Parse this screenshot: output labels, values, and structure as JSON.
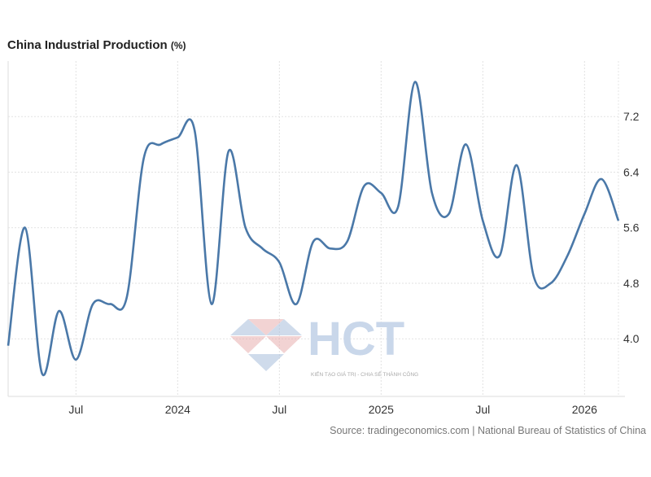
{
  "chart_data": {
    "type": "line",
    "title": "China Industrial Production",
    "unit": "(%)",
    "source": "Source: tradingeconomics.com | National Bureau of Statistics of China",
    "watermark": {
      "text": "HCT",
      "tagline": "KIẾN TẠO GIÁ TRỊ - CHIA SẺ THÀNH CÔNG"
    },
    "xlabel": "",
    "ylabel": "",
    "ylim": [
      3.17,
      8.0
    ],
    "y_ticks": [
      4.0,
      4.8,
      5.6,
      6.4,
      7.2
    ],
    "x_ticks": [
      {
        "label": "Jul",
        "month": 4
      },
      {
        "label": "2024",
        "month": 10
      },
      {
        "label": "Jul",
        "month": 16
      },
      {
        "label": "2025",
        "month": 22
      },
      {
        "label": "Jul",
        "month": 28
      },
      {
        "label": "2026",
        "month": 34
      }
    ],
    "grid": true,
    "line_color": "#4a78a8",
    "series": [
      {
        "name": "China Industrial Production",
        "x": [
          "2023-03",
          "2023-04",
          "2023-05",
          "2023-06",
          "2023-07",
          "2023-08",
          "2023-09",
          "2023-10",
          "2023-11",
          "2023-12",
          "2024-01",
          "2024-02",
          "2024-03",
          "2024-04",
          "2024-05",
          "2024-06",
          "2024-07",
          "2024-08",
          "2024-09",
          "2024-10",
          "2024-11",
          "2024-12",
          "2025-01",
          "2025-02",
          "2025-03",
          "2025-04",
          "2025-05",
          "2025-06",
          "2025-07",
          "2025-08",
          "2025-09",
          "2025-10",
          "2025-11",
          "2025-12",
          "2026-01",
          "2026-02",
          "2026-03"
        ],
        "values": [
          3.9,
          5.6,
          3.5,
          4.4,
          3.7,
          4.5,
          4.5,
          4.6,
          6.6,
          6.8,
          6.9,
          7.0,
          4.5,
          6.7,
          5.6,
          5.3,
          5.1,
          4.5,
          5.4,
          5.3,
          5.4,
          6.2,
          6.1,
          5.9,
          7.7,
          6.1,
          5.8,
          6.8,
          5.7,
          5.2,
          6.5,
          4.9,
          4.8,
          5.2,
          5.8,
          6.3,
          5.7
        ]
      }
    ]
  }
}
